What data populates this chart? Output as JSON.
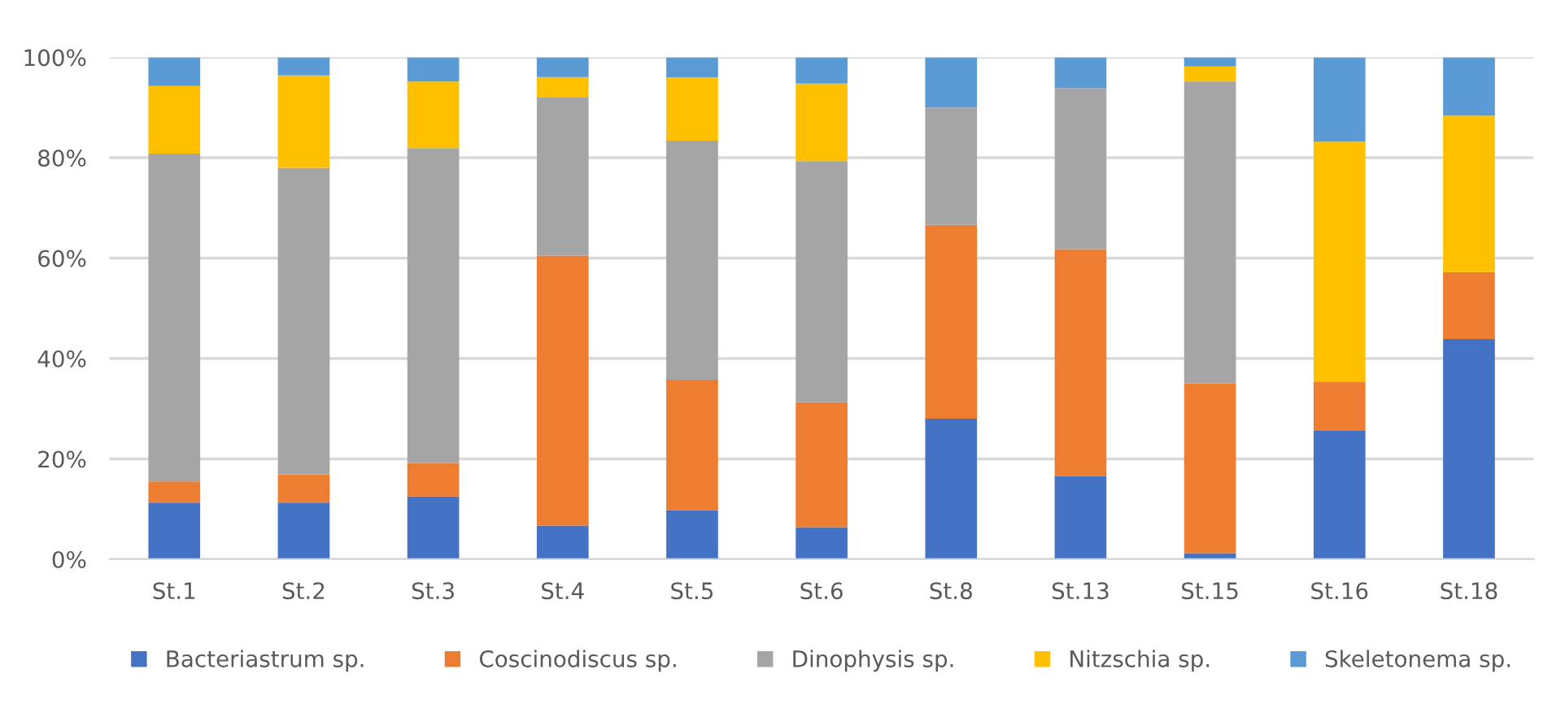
{
  "chart_data": {
    "type": "bar",
    "stacked": true,
    "categories": [
      "St.1",
      "St.2",
      "St.3",
      "St.4",
      "St.5",
      "St.6",
      "St.8",
      "St.13",
      "St.15",
      "St.16",
      "St.18"
    ],
    "series": [
      {
        "name": "Bacteriastrum sp.",
        "color": "#4472c4",
        "values": [
          11.3,
          11.3,
          12.5,
          6.7,
          9.8,
          6.4,
          28.0,
          16.6,
          1.2,
          25.6,
          43.9
        ]
      },
      {
        "name": "Coscinodiscus sp.",
        "color": "#ed7d31",
        "values": [
          4.2,
          5.6,
          6.7,
          53.8,
          26.0,
          24.9,
          38.6,
          45.2,
          33.8,
          9.7,
          13.3
        ]
      },
      {
        "name": "Dinophysis sp.",
        "color": "#a5a5a5",
        "values": [
          65.3,
          61.1,
          62.7,
          31.6,
          47.6,
          48.0,
          23.4,
          32.1,
          60.2,
          0,
          0
        ]
      },
      {
        "name": "Nitzschia sp.",
        "color": "#ffc000",
        "values": [
          13.5,
          18.4,
          13.3,
          4.0,
          12.6,
          15.5,
          0,
          0,
          3.0,
          47.9,
          31.2
        ]
      },
      {
        "name": "Skeletonema sp.",
        "color": "#5b9bd5",
        "values": [
          5.7,
          3.6,
          4.8,
          3.9,
          4.0,
          5.2,
          10.0,
          6.1,
          1.8,
          16.8,
          11.6
        ]
      }
    ],
    "ylim": [
      0,
      100
    ],
    "yticks": [
      {
        "value": 0,
        "label": "0%"
      },
      {
        "value": 20,
        "label": "20%"
      },
      {
        "value": 40,
        "label": "40%"
      },
      {
        "value": 60,
        "label": "60%"
      },
      {
        "value": 80,
        "label": "80%"
      },
      {
        "value": 100,
        "label": "100%"
      }
    ],
    "grid": "y",
    "legend": "bottom"
  }
}
